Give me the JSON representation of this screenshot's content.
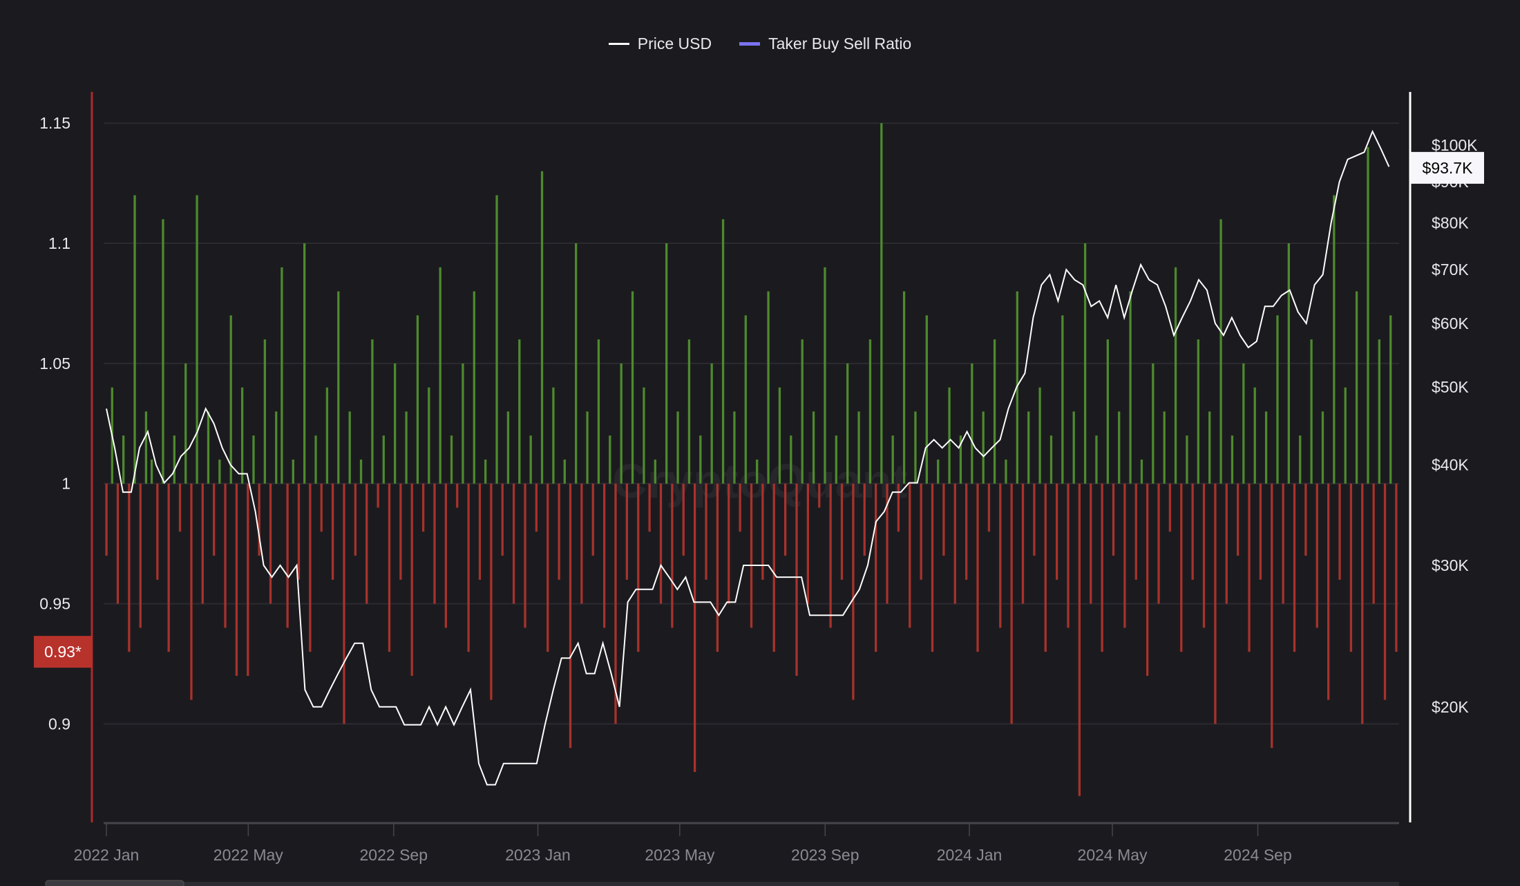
{
  "legend": [
    {
      "label": "Price USD",
      "color": "#ffffff"
    },
    {
      "label": "Taker Buy Sell Ratio",
      "color": "#7b73f0"
    }
  ],
  "watermark": "CryptoQuant",
  "colors": {
    "up": "#4e8a2e",
    "down": "#a8322c",
    "price": "#ffffff",
    "left_axis": "#b02a2a",
    "right_axis": "#ffffff"
  },
  "chart_data": {
    "type": "bar",
    "title": "",
    "left_axis": {
      "label": "Taker Buy Sell Ratio",
      "ticks": [
        {
          "v": 1.15,
          "label": "1.15"
        },
        {
          "v": 1.1,
          "label": "1.1"
        },
        {
          "v": 1.05,
          "label": "1.05"
        },
        {
          "v": 1,
          "label": "1"
        },
        {
          "v": 0.95,
          "label": "0.95"
        },
        {
          "v": 0.9,
          "label": "0.9"
        }
      ],
      "range": [
        0.859,
        1.163
      ],
      "baseline": 1,
      "current_label": "0.93*"
    },
    "right_axis": {
      "label": "Price USD",
      "scale": "log",
      "ticks": [
        {
          "v": 100,
          "label": "$100K"
        },
        {
          "v": 90,
          "label": "$90K"
        },
        {
          "v": 80,
          "label": "$80K"
        },
        {
          "v": 70,
          "label": "$70K"
        },
        {
          "v": 60,
          "label": "$60K"
        },
        {
          "v": 50,
          "label": "$50K"
        },
        {
          "v": 40,
          "label": "$40K"
        },
        {
          "v": 30,
          "label": "$30K"
        },
        {
          "v": 20,
          "label": "$20K"
        }
      ],
      "current_label": "$93.7K"
    },
    "x_axis": {
      "start": "2022-01-01",
      "end": "2024-12-29",
      "ticks": [
        {
          "day": 0,
          "label": "2022 Jan"
        },
        {
          "day": 120,
          "label": "2022 May"
        },
        {
          "day": 243,
          "label": "2022 Sep"
        },
        {
          "day": 365,
          "label": "2023 Jan"
        },
        {
          "day": 485,
          "label": "2023 May"
        },
        {
          "day": 608,
          "label": "2023 Sep"
        },
        {
          "day": 730,
          "label": "2024 Jan"
        },
        {
          "day": 851,
          "label": "2024 May"
        },
        {
          "day": 974,
          "label": "2024 Sep"
        }
      ]
    },
    "series": [
      {
        "name": "Taker Buy Sell Ratio",
        "type": "bar",
        "step_days": 4.2,
        "values": [
          0.97,
          1.04,
          0.95,
          1.02,
          0.93,
          1.12,
          0.94,
          1.03,
          1.01,
          0.96,
          1.11,
          0.93,
          1.02,
          0.98,
          1.05,
          0.91,
          1.12,
          0.95,
          1.03,
          0.97,
          1.01,
          0.94,
          1.07,
          0.92,
          1.04,
          0.92,
          1.02,
          0.97,
          1.06,
          0.95,
          1.03,
          1.09,
          0.94,
          1.01,
          0.96,
          1.1,
          0.93,
          1.02,
          0.98,
          1.04,
          0.96,
          1.08,
          0.9,
          1.03,
          0.97,
          1.01,
          0.95,
          1.06,
          0.99,
          1.02,
          0.93,
          1.05,
          0.96,
          1.03,
          0.92,
          1.07,
          0.98,
          1.04,
          0.95,
          1.09,
          0.94,
          1.02,
          0.99,
          1.05,
          0.93,
          1.08,
          0.96,
          1.01,
          0.91,
          1.12,
          0.97,
          1.03,
          0.95,
          1.06,
          0.94,
          1.02,
          0.98,
          1.13,
          0.93,
          1.04,
          0.96,
          1.01,
          0.89,
          1.1,
          0.95,
          1.03,
          0.97,
          1.06,
          0.94,
          1.02,
          0.9,
          1.05,
          0.96,
          1.08,
          0.93,
          1.04,
          0.98,
          1.01,
          0.95,
          1.1,
          0.94,
          1.03,
          0.97,
          1.06,
          0.88,
          1.02,
          0.96,
          1.05,
          0.93,
          1.11,
          0.95,
          1.03,
          0.98,
          1.07,
          0.94,
          1.01,
          0.96,
          1.08,
          0.93,
          1.04,
          0.97,
          1.02,
          0.92,
          1.06,
          0.95,
          1.03,
          0.99,
          1.09,
          0.94,
          1.02,
          0.96,
          1.05,
          0.91,
          1.03,
          0.97,
          1.06,
          0.93,
          1.15,
          0.95,
          1.02,
          0.98,
          1.08,
          0.94,
          1.03,
          0.96,
          1.07,
          0.93,
          1.01,
          0.97,
          1.04,
          0.95,
          1.02,
          0.96,
          1.05,
          0.93,
          1.03,
          0.98,
          1.06,
          0.94,
          1.01,
          0.9,
          1.08,
          0.95,
          1.03,
          0.97,
          1.04,
          0.93,
          1.02,
          0.96,
          1.07,
          0.94,
          1.03,
          0.87,
          1.1,
          0.95,
          1.02,
          0.93,
          1.06,
          0.97,
          1.03,
          0.94,
          1.08,
          0.96,
          1.01,
          0.92,
          1.05,
          0.95,
          1.03,
          0.98,
          1.09,
          0.93,
          1.02,
          0.96,
          1.06,
          0.94,
          1.03,
          0.9,
          1.11,
          0.95,
          1.02,
          0.97,
          1.05,
          0.93,
          1.04,
          0.96,
          1.03,
          0.89,
          1.07,
          0.95,
          1.1,
          0.93,
          1.02,
          0.97,
          1.06,
          0.94,
          1.03,
          0.91,
          1.12,
          0.96,
          1.04,
          0.93,
          1.08,
          0.9,
          1.14,
          0.95,
          1.06,
          0.91,
          1.07,
          0.93
        ]
      },
      {
        "name": "Price USD",
        "type": "line",
        "unit": "K USD",
        "step_days": 7,
        "values": [
          47,
          42,
          37,
          37,
          42,
          44,
          40,
          38,
          39,
          41,
          42,
          44,
          47,
          45,
          42,
          40,
          39,
          39,
          35,
          30,
          29,
          30,
          29,
          30,
          21,
          20,
          20,
          21,
          22,
          23,
          24,
          24,
          21,
          20,
          20,
          20,
          19,
          19,
          19,
          20,
          19,
          20,
          19,
          20,
          21,
          17,
          16,
          16,
          17,
          17,
          17,
          17,
          17,
          19,
          21,
          23,
          23,
          24,
          22,
          22,
          24,
          22,
          20,
          27,
          28,
          28,
          28,
          30,
          29,
          28,
          29,
          27,
          27,
          27,
          26,
          27,
          27,
          30,
          30,
          30,
          30,
          29,
          29,
          29,
          29,
          26,
          26,
          26,
          26,
          26,
          27,
          28,
          30,
          34,
          35,
          37,
          37,
          38,
          38,
          42,
          43,
          42,
          43,
          42,
          44,
          42,
          41,
          42,
          43,
          47,
          50,
          52,
          61,
          67,
          69,
          64,
          70,
          68,
          67,
          63,
          64,
          61,
          67,
          61,
          66,
          71,
          68,
          67,
          63,
          58,
          61,
          64,
          68,
          66,
          60,
          58,
          61,
          58,
          56,
          57,
          63,
          63,
          65,
          66,
          62,
          60,
          67,
          69,
          80,
          90,
          96,
          97,
          98,
          104,
          99,
          94
        ]
      }
    ]
  }
}
